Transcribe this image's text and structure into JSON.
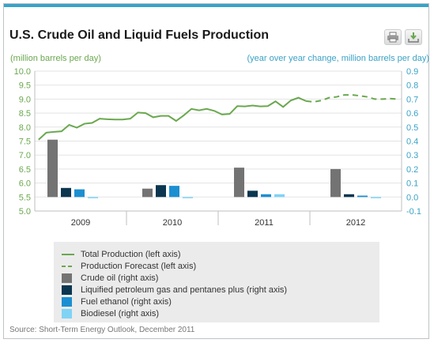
{
  "title": "U.S. Crude Oil and Liquid Fuels Production",
  "left_axis_label": "(million barrels per day)",
  "right_axis_label": "(year over year change, million barrels per day)",
  "source": "Source: Short-Term Energy Outlook, December 2011",
  "toolbar": {
    "print_icon": "printer-icon",
    "download_icon": "download-icon"
  },
  "colors": {
    "total": "#6aa84f",
    "forecast": "#6aa84f",
    "crude": "#737373",
    "lpg": "#0b3650",
    "ethanol": "#1c8fd1",
    "biodiesel": "#7fd3f5",
    "left_axis": "#6aa84f",
    "right_axis": "#3aa2c6"
  },
  "legend": [
    {
      "label": "Total Production (left axis)",
      "kind": "line",
      "key": "total"
    },
    {
      "label": "Production Forecast (left axis)",
      "kind": "dash",
      "key": "forecast"
    },
    {
      "label": "Crude oil (right axis)",
      "kind": "box",
      "key": "crude"
    },
    {
      "label": "Liquified petroleum gas and pentanes plus (right axis)",
      "kind": "box",
      "key": "lpg"
    },
    {
      "label": "Fuel ethanol (right axis)",
      "kind": "box",
      "key": "ethanol"
    },
    {
      "label": "Biodiesel (right axis)",
      "kind": "box",
      "key": "biodiesel"
    }
  ],
  "chart_data": {
    "type": "bar",
    "categories": [
      "2009",
      "2010",
      "2011",
      "2012"
    ],
    "left_ylim": [
      5.0,
      10.0
    ],
    "left_ticks": [
      "5.0",
      "5.5",
      "6.0",
      "6.5",
      "7.0",
      "7.5",
      "8.0",
      "8.5",
      "9.0",
      "9.5",
      "10.0"
    ],
    "right_ylim": [
      -0.1,
      0.9
    ],
    "right_ticks": [
      "-0.1",
      "0.0",
      "0.1",
      "0.2",
      "0.3",
      "0.4",
      "0.5",
      "0.6",
      "0.7",
      "0.8",
      "0.9"
    ],
    "grid": "horizontal",
    "legend_position": "bottom",
    "series": [
      {
        "name": "Crude oil",
        "axis": "right",
        "values": [
          0.41,
          0.06,
          0.21,
          0.2
        ]
      },
      {
        "name": "Liquified petroleum gas and pentanes plus",
        "axis": "right",
        "values": [
          0.065,
          0.085,
          0.045,
          0.02
        ]
      },
      {
        "name": "Fuel ethanol",
        "axis": "right",
        "values": [
          0.055,
          0.08,
          0.02,
          0.01
        ]
      },
      {
        "name": "Biodiesel",
        "axis": "right",
        "values": [
          -0.005,
          -0.005,
          0.02,
          0.0
        ]
      }
    ],
    "lines": [
      {
        "name": "Total Production",
        "axis": "left",
        "style": "solid",
        "x": [
          0,
          1,
          2,
          3,
          4,
          5,
          6,
          7,
          8,
          9,
          10,
          11,
          12,
          13,
          14,
          15,
          16,
          17,
          18,
          19,
          20,
          21,
          22,
          23,
          24,
          25,
          26,
          27,
          28,
          29,
          30,
          31,
          32,
          33,
          34,
          35
        ],
        "y": [
          7.55,
          7.8,
          7.83,
          7.85,
          8.08,
          7.98,
          8.12,
          8.15,
          8.3,
          8.28,
          8.27,
          8.27,
          8.3,
          8.52,
          8.5,
          8.35,
          8.4,
          8.4,
          8.22,
          8.42,
          8.65,
          8.6,
          8.65,
          8.58,
          8.45,
          8.47,
          8.75,
          8.74,
          8.77,
          8.74,
          8.75,
          8.92,
          8.72,
          8.95,
          9.05,
          8.93
        ]
      },
      {
        "name": "Production Forecast",
        "axis": "left",
        "style": "dashed",
        "x": [
          35,
          36,
          37,
          38,
          39,
          40,
          41,
          42,
          43,
          44,
          45,
          46,
          47
        ],
        "y": [
          8.93,
          8.9,
          8.95,
          9.05,
          9.08,
          9.15,
          9.15,
          9.12,
          9.08,
          9.0,
          9.0,
          9.02,
          9.0
        ]
      }
    ]
  }
}
